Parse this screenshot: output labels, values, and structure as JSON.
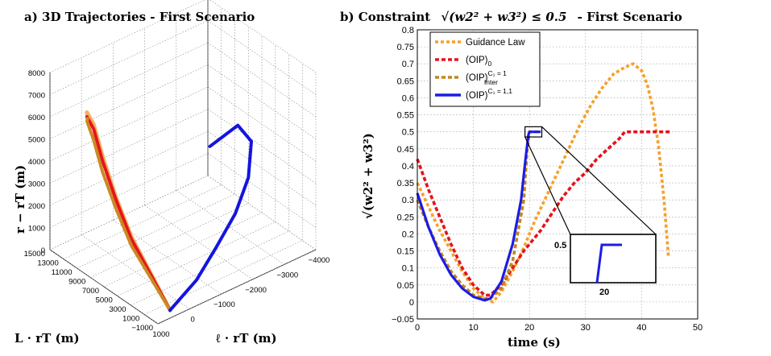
{
  "chart_data": [
    {
      "type": "line",
      "title": "a) 3D Trajectories - First Scenario",
      "xlabel": "ℓ · rT   (m)",
      "ylabel": "L · rT   (m)",
      "zlabel": "r − rT   (m)",
      "x_ticks": [
        "1000",
        "0",
        "−1000",
        "−2000",
        "−3000",
        "−4000"
      ],
      "y_ticks": [
        "15000",
        "13000",
        "11000",
        "9000",
        "7000",
        "5000",
        "3000",
        "1000",
        "−1000"
      ],
      "z_ticks": [
        "0",
        "1000",
        "2000",
        "3000",
        "4000",
        "5000",
        "6000",
        "7000",
        "8000"
      ],
      "grid": true,
      "series": [
        {
          "name": "Guidance Law",
          "color": "#f5b060",
          "x": [
            -150,
            0,
            150,
            300,
            400,
            450,
            450,
            400
          ],
          "y": [
            14800,
            14200,
            12500,
            10500,
            8000,
            5500,
            2500,
            0
          ],
          "z": [
            5200,
            5700,
            5600,
            4700,
            3400,
            2200,
            1100,
            0
          ]
        },
        {
          "name": "(OIP)0",
          "color": "#e8131b",
          "x": [
            -150,
            0,
            150,
            300,
            400,
            450,
            450,
            400
          ],
          "y": [
            14800,
            14200,
            12500,
            10500,
            8000,
            5500,
            2500,
            0
          ],
          "z": [
            5200,
            5500,
            5400,
            4500,
            3300,
            2100,
            1050,
            0
          ]
        },
        {
          "name": "(OIP)Inter C1 = 1",
          "color": "#c98a24",
          "x": [
            -150,
            0,
            150,
            300,
            400,
            450,
            450,
            400
          ],
          "y": [
            14800,
            14200,
            12500,
            10500,
            8000,
            5500,
            2500,
            0
          ],
          "z": [
            5200,
            5300,
            4900,
            4000,
            2900,
            1800,
            900,
            0
          ]
        },
        {
          "name": "(OIP)C1 = 1,1",
          "color": "#1414e0",
          "x": [
            -1500,
            -2300,
            -2600,
            -2400,
            -1900,
            -1200,
            -500,
            400
          ],
          "y": [
            3000,
            2600,
            2000,
            1500,
            1100,
            700,
            300,
            0
          ],
          "z": [
            5500,
            6000,
            5200,
            3800,
            2600,
            1600,
            700,
            0
          ]
        }
      ]
    },
    {
      "type": "line",
      "title": "b) Constraint",
      "title_formula": "√(w2² + w3²) ≤ 0.5",
      "title_suffix": "- First Scenario",
      "xlabel": "time   (s)",
      "ylabel": "√(w2² + w3²)",
      "xlim": [
        0,
        50
      ],
      "ylim": [
        -0.05,
        0.8
      ],
      "x_ticks": [
        0,
        10,
        20,
        30,
        40,
        50
      ],
      "y_ticks": [
        -0.05,
        0,
        0.05,
        0.1,
        0.15,
        0.2,
        0.25,
        0.3,
        0.35,
        0.4,
        0.45,
        0.5,
        0.55,
        0.6,
        0.65,
        0.7,
        0.75,
        0.8
      ],
      "grid": true,
      "legend_position": "top-left",
      "series": [
        {
          "name": "Guidance Law",
          "color": "#f5a12a",
          "dash": "dotted",
          "x": [
            0,
            2,
            4,
            6,
            8,
            10,
            12,
            13.5,
            15,
            17,
            19,
            20,
            21,
            23,
            25,
            27,
            29,
            31,
            33,
            35,
            37,
            38.5,
            40,
            41,
            42,
            43,
            44,
            44.8
          ],
          "y": [
            0.35,
            0.28,
            0.21,
            0.15,
            0.09,
            0.04,
            0.01,
            0.0,
            0.03,
            0.09,
            0.16,
            0.2,
            0.24,
            0.31,
            0.38,
            0.45,
            0.52,
            0.58,
            0.63,
            0.67,
            0.69,
            0.7,
            0.68,
            0.64,
            0.57,
            0.46,
            0.3,
            0.13
          ]
        },
        {
          "name": "(OIP)0",
          "color": "#e5131b",
          "dash": "dashed",
          "x": [
            0,
            2,
            4,
            6,
            8,
            10,
            12,
            13,
            15,
            17,
            19,
            20,
            22,
            24,
            26,
            28,
            30,
            32,
            34,
            36,
            37,
            38,
            40,
            42,
            45
          ],
          "y": [
            0.42,
            0.33,
            0.25,
            0.17,
            0.1,
            0.05,
            0.02,
            0.02,
            0.05,
            0.1,
            0.15,
            0.17,
            0.21,
            0.26,
            0.31,
            0.35,
            0.38,
            0.42,
            0.45,
            0.48,
            0.5,
            0.5,
            0.5,
            0.5,
            0.5
          ]
        },
        {
          "name": "(OIP)Inter C1 = 1",
          "color": "#c4861d",
          "dash": "dashed",
          "x": [
            0,
            2,
            4,
            6,
            8,
            10,
            12,
            13,
            15,
            17,
            19,
            19.6,
            20,
            22
          ],
          "y": [
            0.3,
            0.22,
            0.15,
            0.09,
            0.05,
            0.02,
            0.01,
            0.01,
            0.04,
            0.12,
            0.3,
            0.45,
            0.5,
            0.5
          ]
        },
        {
          "name": "(OIP)C1 = 1,1",
          "color": "#1c1ce6",
          "dash": "solid",
          "x": [
            0,
            2,
            4,
            6,
            8,
            10,
            12,
            13,
            15,
            17,
            18.5,
            19.3,
            19.8,
            20,
            22
          ],
          "y": [
            0.32,
            0.22,
            0.14,
            0.08,
            0.04,
            0.015,
            0.005,
            0.01,
            0.06,
            0.17,
            0.3,
            0.42,
            0.49,
            0.5,
            0.5
          ]
        }
      ],
      "inset": {
        "x_label": "20",
        "y_label": "0.5"
      }
    }
  ],
  "legend": [
    {
      "text": "Guidance Law",
      "sub": "",
      "sup": ""
    },
    {
      "text": "(OIP)",
      "sub": "0",
      "sup": ""
    },
    {
      "text": "(OIP)",
      "sub": "Inter",
      "sup": "C₁ = 1"
    },
    {
      "text": "(OIP)",
      "sub": "",
      "sup": "C₁ = 1,1"
    }
  ]
}
